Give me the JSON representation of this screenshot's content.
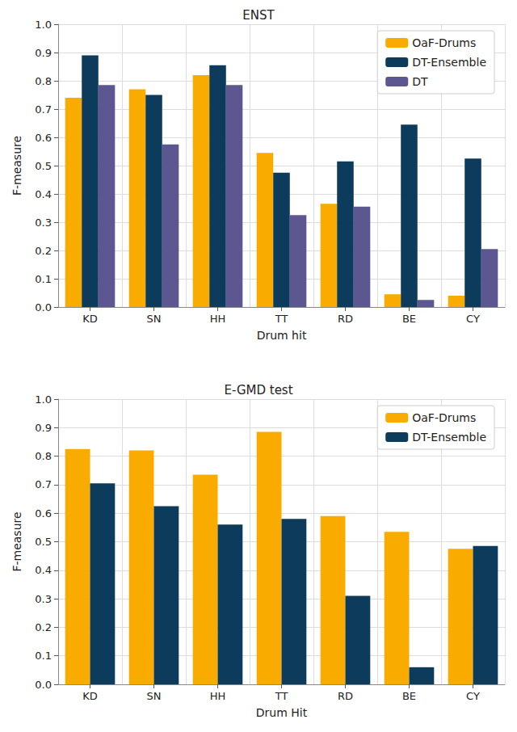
{
  "chart_data": [
    {
      "type": "bar",
      "title": "ENST",
      "xlabel": "Drum hit",
      "ylabel": "F-measure",
      "categories": [
        "KD",
        "SN",
        "HH",
        "TT",
        "RD",
        "BE",
        "CY"
      ],
      "series": [
        {
          "name": "OaF-Drums",
          "color": "#f9ab00",
          "values": [
            0.74,
            0.77,
            0.82,
            0.545,
            0.365,
            0.045,
            0.04
          ]
        },
        {
          "name": "DT-Ensemble",
          "color": "#0c3b5c",
          "values": [
            0.89,
            0.75,
            0.855,
            0.475,
            0.515,
            0.645,
            0.525
          ]
        },
        {
          "name": "DT",
          "color": "#5c5791",
          "values": [
            0.785,
            0.575,
            0.785,
            0.325,
            0.355,
            0.025,
            0.205
          ]
        }
      ],
      "ylim": [
        0,
        1
      ],
      "yticks": [
        {
          "value": 0,
          "label": "0.0"
        },
        0.1,
        0.2,
        0.3,
        0.4,
        0.5,
        0.6,
        0.7,
        0.8,
        0.9,
        {
          "value": 1,
          "label": "1.0"
        }
      ],
      "grid": true,
      "legend": "upper right"
    },
    {
      "type": "bar",
      "title": "E-GMD test",
      "xlabel": "Drum Hit",
      "ylabel": "F-measure",
      "categories": [
        "KD",
        "SN",
        "HH",
        "TT",
        "RD",
        "BE",
        "CY"
      ],
      "series": [
        {
          "name": "OaF-Drums",
          "color": "#f9ab00",
          "values": [
            0.825,
            0.82,
            0.735,
            0.885,
            0.59,
            0.535,
            0.475
          ]
        },
        {
          "name": "DT-Ensemble",
          "color": "#0c3b5c",
          "values": [
            0.705,
            0.625,
            0.56,
            0.58,
            0.31,
            0.06,
            0.485
          ]
        }
      ],
      "ylim": [
        0,
        1
      ],
      "yticks": [
        {
          "value": 0,
          "label": "0.0"
        },
        0.1,
        0.2,
        0.3,
        0.4,
        0.5,
        0.6,
        0.7,
        0.8,
        0.9,
        {
          "value": 1,
          "label": "1.0"
        }
      ],
      "grid": true,
      "legend": "upper right"
    }
  ]
}
